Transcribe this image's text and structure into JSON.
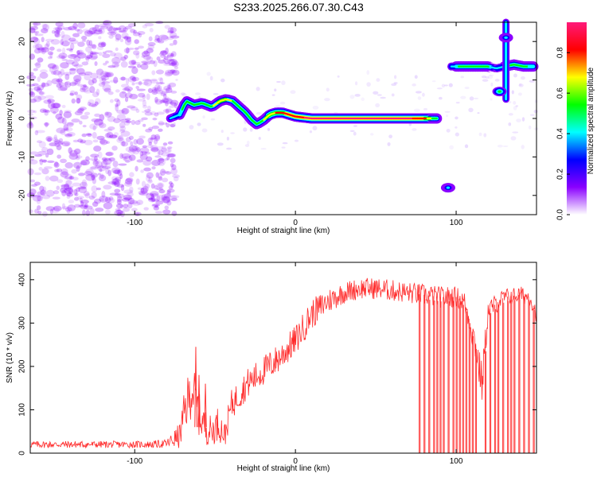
{
  "figure": {
    "title": "S233.2025.266.07.30.C43"
  },
  "chart_data": [
    {
      "type": "heatmap",
      "title": "S233.2025.266.07.30.C43",
      "xlabel": "Height of straight line (km)",
      "ylabel": "Frequency (Hz)",
      "xlim": [
        -165,
        150
      ],
      "ylim": [
        -25,
        25
      ],
      "xticks": [
        -100,
        0,
        100
      ],
      "yticks": [
        -20,
        -10,
        0,
        10,
        20
      ],
      "colorbar": {
        "label": "Normalized spectral amplitude",
        "range": [
          0,
          0.95
        ],
        "ticks": [
          0.0,
          0.2,
          0.4,
          0.6,
          0.8
        ],
        "colors": [
          "#ffffff",
          "#8a00ff",
          "#0000ff",
          "#00ffff",
          "#00ff00",
          "#ffff00",
          "#ff0000",
          "#ff1a7a"
        ]
      },
      "noise_region_x": [
        -165,
        -80
      ],
      "ridges": [
        {
          "name": "main-frequency-trace",
          "x": [
            -78,
            -72,
            -68,
            -63,
            -58,
            -52,
            -47,
            -43,
            -39,
            -35,
            -31,
            -27,
            -24,
            -20,
            -16,
            -12,
            -8,
            -4,
            0,
            10,
            20,
            30,
            40,
            50,
            60,
            70,
            80,
            88
          ],
          "freq": [
            0,
            1,
            4.5,
            3.5,
            4,
            3,
            4.5,
            5,
            4.5,
            3,
            1.5,
            -0.5,
            -1.5,
            -0.5,
            1,
            1.5,
            1.5,
            1,
            0.5,
            0,
            0,
            0,
            0,
            0,
            0,
            0,
            0,
            0
          ],
          "amplitude": [
            0.35,
            0.45,
            0.5,
            0.55,
            0.55,
            0.6,
            0.65,
            0.65,
            0.6,
            0.55,
            0.6,
            0.6,
            0.55,
            0.6,
            0.7,
            0.75,
            0.8,
            0.85,
            0.85,
            0.9,
            0.9,
            0.9,
            0.9,
            0.9,
            0.9,
            0.9,
            0.85,
            0.5
          ]
        },
        {
          "name": "upper-trace",
          "x": [
            97,
            102,
            108,
            114,
            120,
            125,
            130,
            136,
            142,
            148
          ],
          "freq": [
            13.5,
            13.5,
            13.5,
            13.5,
            13.5,
            13,
            13.5,
            14,
            13.5,
            13.5
          ],
          "amplitude": [
            0.4,
            0.5,
            0.55,
            0.55,
            0.5,
            0.4,
            0.45,
            0.5,
            0.5,
            0.45
          ]
        }
      ],
      "blobs": [
        {
          "x": 95,
          "freq": -18,
          "amplitude": 0.45
        },
        {
          "x": 127,
          "freq": 7,
          "amplitude": 0.5
        },
        {
          "x": 131,
          "freq": 21,
          "amplitude": 0.4
        }
      ],
      "vertical_streak": {
        "x": 131,
        "freq_from": 5,
        "freq_to": 25,
        "amplitude": 0.45
      }
    },
    {
      "type": "line",
      "xlabel": "Height of straight line (km)",
      "ylabel": "SNR (10 * v/v)",
      "xlim": [
        -165,
        150
      ],
      "ylim": [
        0,
        440
      ],
      "xticks": [
        -100,
        0,
        100
      ],
      "yticks": [
        0,
        100,
        200,
        300,
        400
      ],
      "series": [
        {
          "name": "SNR",
          "color": "#ff2a2a",
          "x": [
            -165,
            -150,
            -130,
            -110,
            -90,
            -80,
            -72,
            -68,
            -64,
            -60,
            -56,
            -52,
            -48,
            -44,
            -40,
            -30,
            -20,
            -10,
            0,
            10,
            20,
            30,
            40,
            50,
            60,
            70,
            80,
            90,
            100,
            105,
            108,
            112,
            116,
            120,
            130,
            140,
            146,
            150
          ],
          "mean": [
            20,
            20,
            20,
            20,
            20,
            22,
            40,
            110,
            150,
            90,
            60,
            50,
            70,
            40,
            110,
            160,
            190,
            220,
            260,
            320,
            350,
            370,
            380,
            380,
            375,
            370,
            365,
            360,
            360,
            350,
            310,
            250,
            160,
            330,
            360,
            365,
            360,
            320
          ],
          "noise": [
            8,
            8,
            8,
            8,
            8,
            10,
            30,
            60,
            60,
            50,
            40,
            35,
            40,
            30,
            35,
            35,
            35,
            35,
            35,
            35,
            30,
            25,
            25,
            25,
            25,
            25,
            25,
            25,
            25,
            25,
            30,
            40,
            50,
            25,
            20,
            20,
            20,
            20
          ]
        }
      ],
      "dropouts_to_zero_x": [
        77,
        80,
        83,
        86,
        88,
        90,
        92,
        95,
        98,
        100,
        102,
        104,
        106,
        108,
        110,
        112,
        118,
        121,
        124,
        126,
        129,
        132,
        134,
        136,
        139,
        142,
        145,
        148
      ],
      "spike_peaks": [
        {
          "x": -62,
          "y": 245
        },
        {
          "x": -60,
          "y": 180
        },
        {
          "x": -56,
          "y": 160
        }
      ]
    }
  ]
}
